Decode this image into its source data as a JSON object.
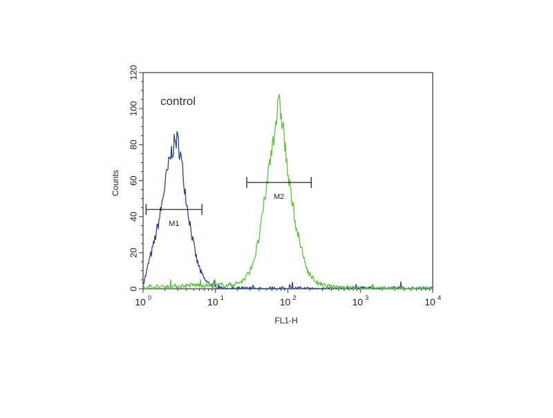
{
  "chart_data": {
    "type": "line",
    "title": "",
    "annotation": "control",
    "xlabel": "FL1-H",
    "ylabel": "Counts",
    "xscale": "log",
    "xlim": [
      1,
      10000
    ],
    "ylim": [
      0,
      120
    ],
    "yticks": [
      0,
      20,
      40,
      60,
      80,
      100,
      120
    ],
    "xticks": [
      {
        "value": 1,
        "base": "10",
        "exp": "0"
      },
      {
        "value": 10,
        "base": "10",
        "exp": "1"
      },
      {
        "value": 100,
        "base": "10",
        "exp": "2"
      },
      {
        "value": 1000,
        "base": "10",
        "exp": "3"
      },
      {
        "value": 10000,
        "base": "10",
        "exp": "4"
      }
    ],
    "grid": false,
    "legend": "none",
    "series": [
      {
        "color": "#2b3f8f",
        "x": [
          1.0,
          1.1,
          1.2,
          1.35,
          1.5,
          1.7,
          1.9,
          2.1,
          2.3,
          2.5,
          2.7,
          2.9,
          3.1,
          3.3,
          3.5,
          3.8,
          4.1,
          4.5,
          5.0,
          5.6,
          6.3,
          7.1,
          8.0,
          9.0,
          10.0,
          11.5,
          13,
          20,
          50,
          100,
          300,
          1000,
          10000
        ],
        "y": [
          3,
          8,
          15,
          22,
          30,
          40,
          52,
          62,
          70,
          77,
          80,
          83,
          80,
          74,
          66,
          55,
          45,
          35,
          24,
          15,
          9,
          5,
          3,
          2,
          1,
          1,
          0,
          0,
          0,
          0,
          0,
          0,
          0
        ]
      },
      {
        "color": "#5cc33d",
        "x": [
          1,
          2,
          5,
          10,
          15,
          20,
          25,
          30,
          35,
          40,
          45,
          50,
          55,
          60,
          65,
          70,
          75,
          80,
          85,
          90,
          95,
          100,
          110,
          120,
          130,
          145,
          160,
          180,
          200,
          230,
          260,
          300,
          400,
          600,
          1000,
          3000,
          10000
        ],
        "y": [
          1,
          1,
          2,
          2,
          2,
          3,
          5,
          10,
          18,
          28,
          42,
          55,
          68,
          79,
          88,
          96,
          102,
          98,
          92,
          82,
          72,
          63,
          52,
          43,
          35,
          26,
          19,
          12,
          8,
          5,
          3,
          2,
          1,
          1,
          0,
          0,
          0
        ]
      }
    ],
    "markers": [
      {
        "label": "M1",
        "x_start": 1.1,
        "x_end": 6.5,
        "y": 44
      },
      {
        "label": "M2",
        "x_start": 27,
        "x_end": 210,
        "y": 59
      }
    ]
  }
}
